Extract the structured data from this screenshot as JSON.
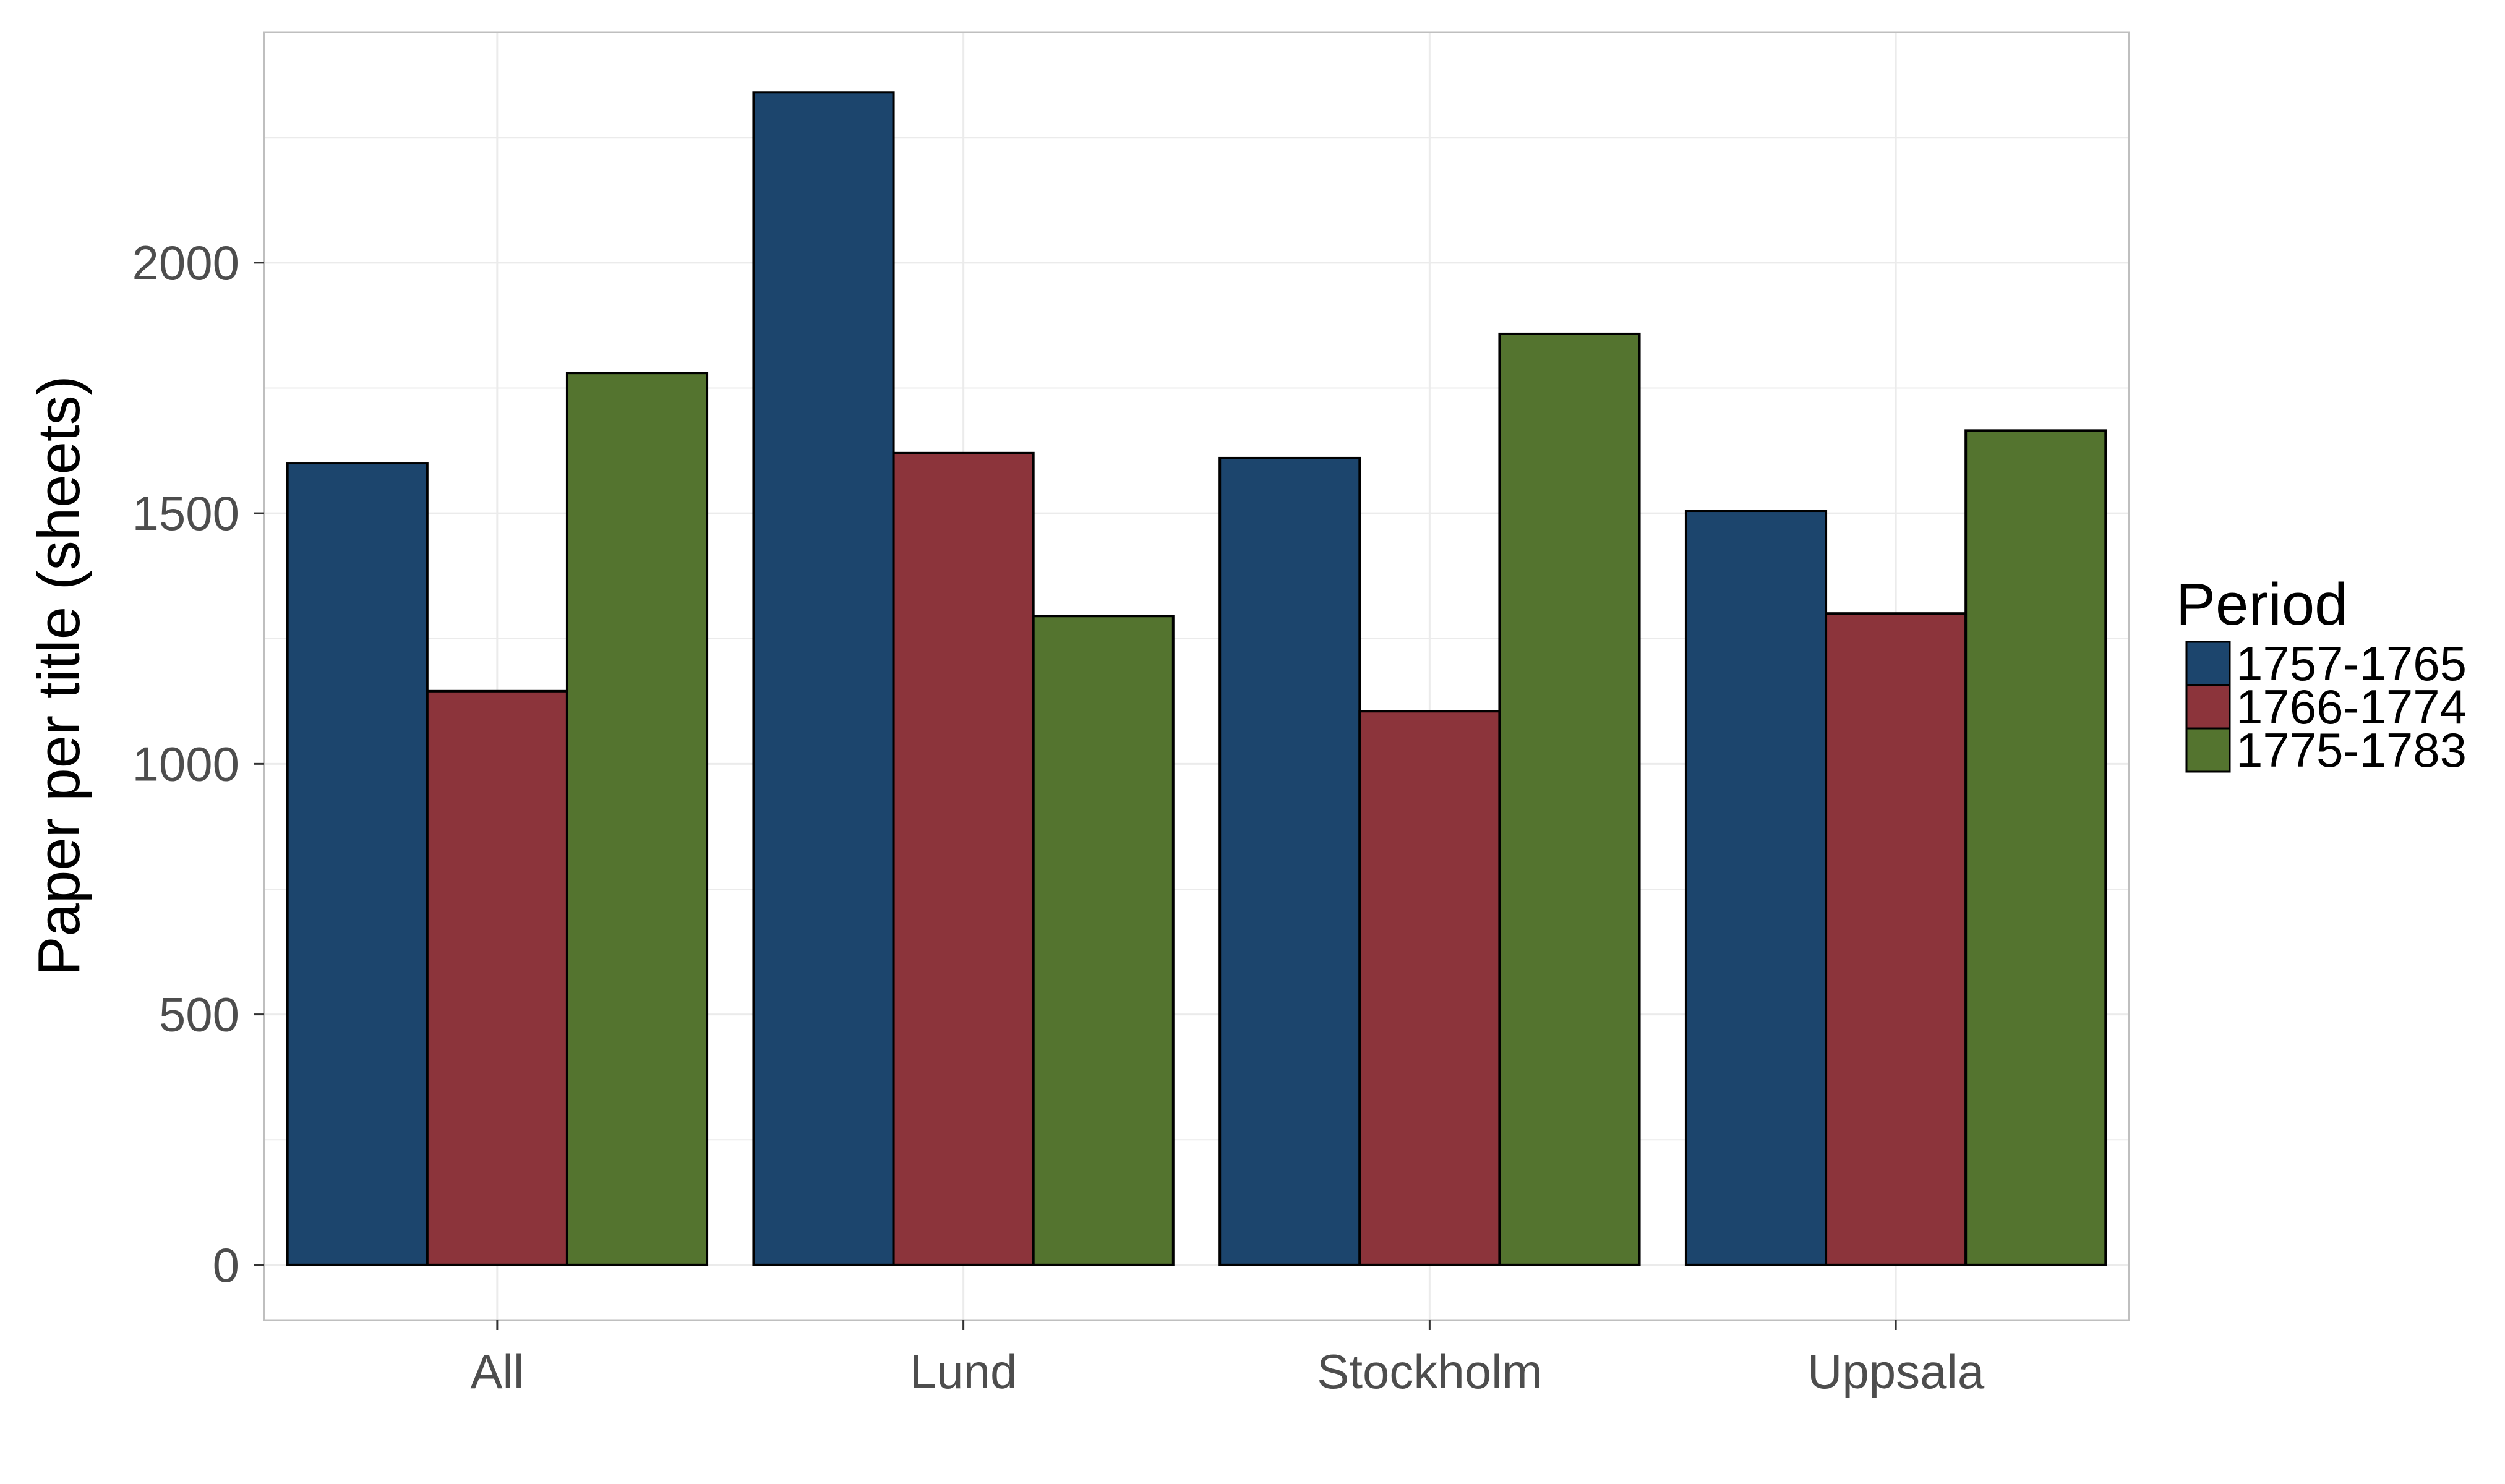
{
  "chart_data": {
    "type": "bar",
    "title": "",
    "xlabel": "",
    "ylabel": "Paper per title (sheets)",
    "categories": [
      "All",
      "Lund",
      "Stockholm",
      "Uppsala"
    ],
    "series": [
      {
        "name": "1757-1765",
        "color": "#1c456d",
        "values": [
          1600,
          2340,
          1610,
          1505
        ]
      },
      {
        "name": "1766-1774",
        "color": "#8c343b",
        "values": [
          1145,
          1620,
          1105,
          1300
        ]
      },
      {
        "name": "1775-1783",
        "color": "#54742f",
        "values": [
          1780,
          1295,
          1858,
          1665
        ]
      }
    ],
    "ylim": [
      -110,
      2460
    ],
    "yticks": [
      0,
      500,
      1000,
      1500,
      2000
    ],
    "ytick_labels": [
      "0",
      "500",
      "1000",
      "1500",
      "2000"
    ],
    "grid": true,
    "legend": {
      "title": "Period",
      "position": "right"
    },
    "colors": {
      "grid": "#ebebeb",
      "panel_border": "#bfbfbf",
      "bar_outline": "#000000",
      "tick_text": "#4d4d4d"
    }
  }
}
